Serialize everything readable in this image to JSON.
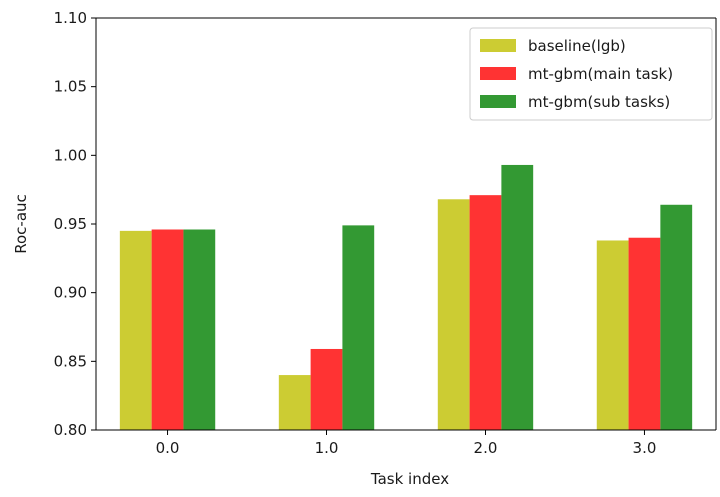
{
  "chart_data": {
    "type": "bar",
    "title": "",
    "xlabel": "Task index",
    "ylabel": "Roc-auc",
    "x": [
      0.0,
      1.0,
      2.0,
      3.0
    ],
    "x_tick_labels": [
      "0.0",
      "1.0",
      "2.0",
      "3.0"
    ],
    "xlim": [
      -0.45,
      3.45
    ],
    "ylim": [
      0.8,
      1.1
    ],
    "y_ticks": [
      0.8,
      0.85,
      0.9,
      0.95,
      1.0,
      1.05,
      1.1
    ],
    "y_tick_labels": [
      "0.80",
      "0.85",
      "0.90",
      "0.95",
      "1.00",
      "1.05",
      "1.10"
    ],
    "bar_width": 0.2,
    "grid": false,
    "legend_position": "top-right",
    "series": [
      {
        "name": "baseline(lgb)",
        "color": "#cccc33",
        "values": [
          0.945,
          0.84,
          0.968,
          0.938
        ]
      },
      {
        "name": "mt-gbm(main task)",
        "color": "#ff3333",
        "values": [
          0.946,
          0.859,
          0.971,
          0.94
        ]
      },
      {
        "name": "mt-gbm(sub tasks)",
        "color": "#339933",
        "values": [
          0.946,
          0.949,
          0.993,
          0.964
        ]
      }
    ]
  }
}
